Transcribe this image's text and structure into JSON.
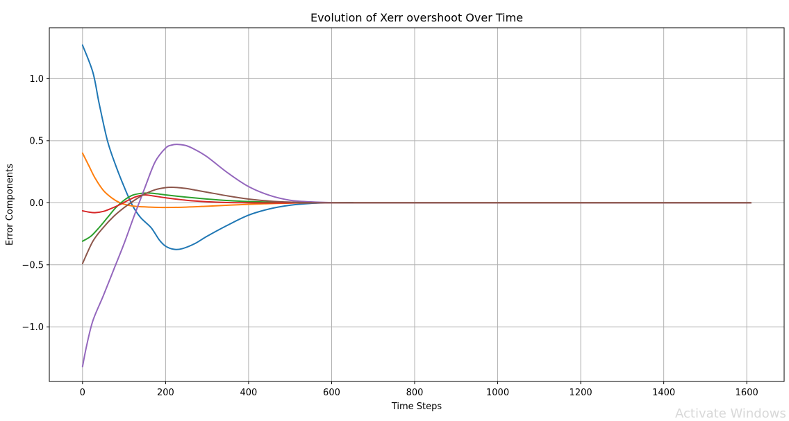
{
  "chart_data": {
    "type": "line",
    "title": "Evolution of Xerr overshoot Over Time",
    "xlabel": "Time Steps",
    "ylabel": "Error Components",
    "xlim": [
      -80,
      1690
    ],
    "ylim": [
      -1.44,
      1.41
    ],
    "xticks": [
      0,
      200,
      400,
      600,
      800,
      1000,
      1200,
      1400,
      1600
    ],
    "xtick_labels": [
      "0",
      "200",
      "400",
      "600",
      "800",
      "1000",
      "1200",
      "1400",
      "1600"
    ],
    "yticks": [
      -1.0,
      -0.5,
      0.0,
      0.5,
      1.0
    ],
    "ytick_labels": [
      "−1.0",
      "−0.5",
      "0.0",
      "0.5",
      "1.0"
    ],
    "grid": true,
    "legend": "none",
    "series": [
      {
        "color": "#1f77b4",
        "x": [
          0,
          25,
          40,
          60,
          80,
          100,
          120,
          140,
          165,
          185,
          200,
          220,
          240,
          270,
          300,
          350,
          400,
          450,
          500,
          550,
          600,
          650,
          700,
          1610
        ],
        "y": [
          1.27,
          1.05,
          0.8,
          0.5,
          0.3,
          0.13,
          -0.02,
          -0.12,
          -0.2,
          -0.3,
          -0.35,
          -0.375,
          -0.37,
          -0.33,
          -0.27,
          -0.18,
          -0.1,
          -0.05,
          -0.02,
          -0.005,
          0.0,
          0.002,
          0.0,
          0.0
        ]
      },
      {
        "color": "#ff7f0e",
        "x": [
          0,
          15,
          30,
          50,
          70,
          90,
          110,
          130,
          160,
          200,
          250,
          300,
          350,
          400,
          450,
          500,
          550,
          600,
          1610
        ],
        "y": [
          0.4,
          0.3,
          0.2,
          0.1,
          0.04,
          0.0,
          -0.02,
          -0.03,
          -0.035,
          -0.038,
          -0.035,
          -0.028,
          -0.02,
          -0.013,
          -0.007,
          -0.003,
          -0.001,
          0.0,
          0.0
        ]
      },
      {
        "color": "#2ca02c",
        "x": [
          0,
          20,
          40,
          60,
          80,
          100,
          120,
          140,
          160,
          180,
          200,
          250,
          300,
          350,
          400,
          450,
          500,
          550,
          600,
          1610
        ],
        "y": [
          -0.31,
          -0.27,
          -0.2,
          -0.12,
          -0.04,
          0.02,
          0.06,
          0.075,
          0.078,
          0.072,
          0.063,
          0.045,
          0.03,
          0.018,
          0.01,
          0.005,
          0.002,
          0.001,
          0.0,
          0.0
        ]
      },
      {
        "color": "#d62728",
        "x": [
          0,
          15,
          30,
          50,
          70,
          90,
          110,
          130,
          150,
          170,
          200,
          250,
          300,
          350,
          400,
          450,
          500,
          550,
          600,
          1610
        ],
        "y": [
          -0.065,
          -0.075,
          -0.08,
          -0.07,
          -0.045,
          -0.015,
          0.02,
          0.05,
          0.063,
          0.055,
          0.04,
          0.02,
          0.008,
          0.002,
          0.0,
          -0.002,
          -0.001,
          0.0,
          0.0,
          0.0
        ]
      },
      {
        "color": "#9467bd",
        "x": [
          0,
          10,
          25,
          50,
          75,
          100,
          125,
          150,
          175,
          200,
          215,
          230,
          250,
          270,
          300,
          350,
          400,
          450,
          500,
          550,
          600,
          650,
          1610
        ],
        "y": [
          -1.32,
          -1.15,
          -0.95,
          -0.75,
          -0.54,
          -0.33,
          -0.1,
          0.12,
          0.33,
          0.44,
          0.465,
          0.47,
          0.46,
          0.43,
          0.37,
          0.24,
          0.13,
          0.06,
          0.02,
          0.007,
          0.001,
          0.0,
          0.0
        ]
      },
      {
        "color": "#8c564b",
        "x": [
          0,
          25,
          50,
          75,
          100,
          125,
          150,
          175,
          200,
          215,
          230,
          250,
          275,
          300,
          350,
          400,
          450,
          500,
          550,
          600,
          1610
        ],
        "y": [
          -0.49,
          -0.31,
          -0.2,
          -0.11,
          -0.04,
          0.02,
          0.07,
          0.105,
          0.122,
          0.125,
          0.122,
          0.115,
          0.1,
          0.085,
          0.055,
          0.03,
          0.014,
          0.005,
          0.001,
          0.0,
          0.0
        ]
      }
    ]
  },
  "watermark": "Activate Windows"
}
